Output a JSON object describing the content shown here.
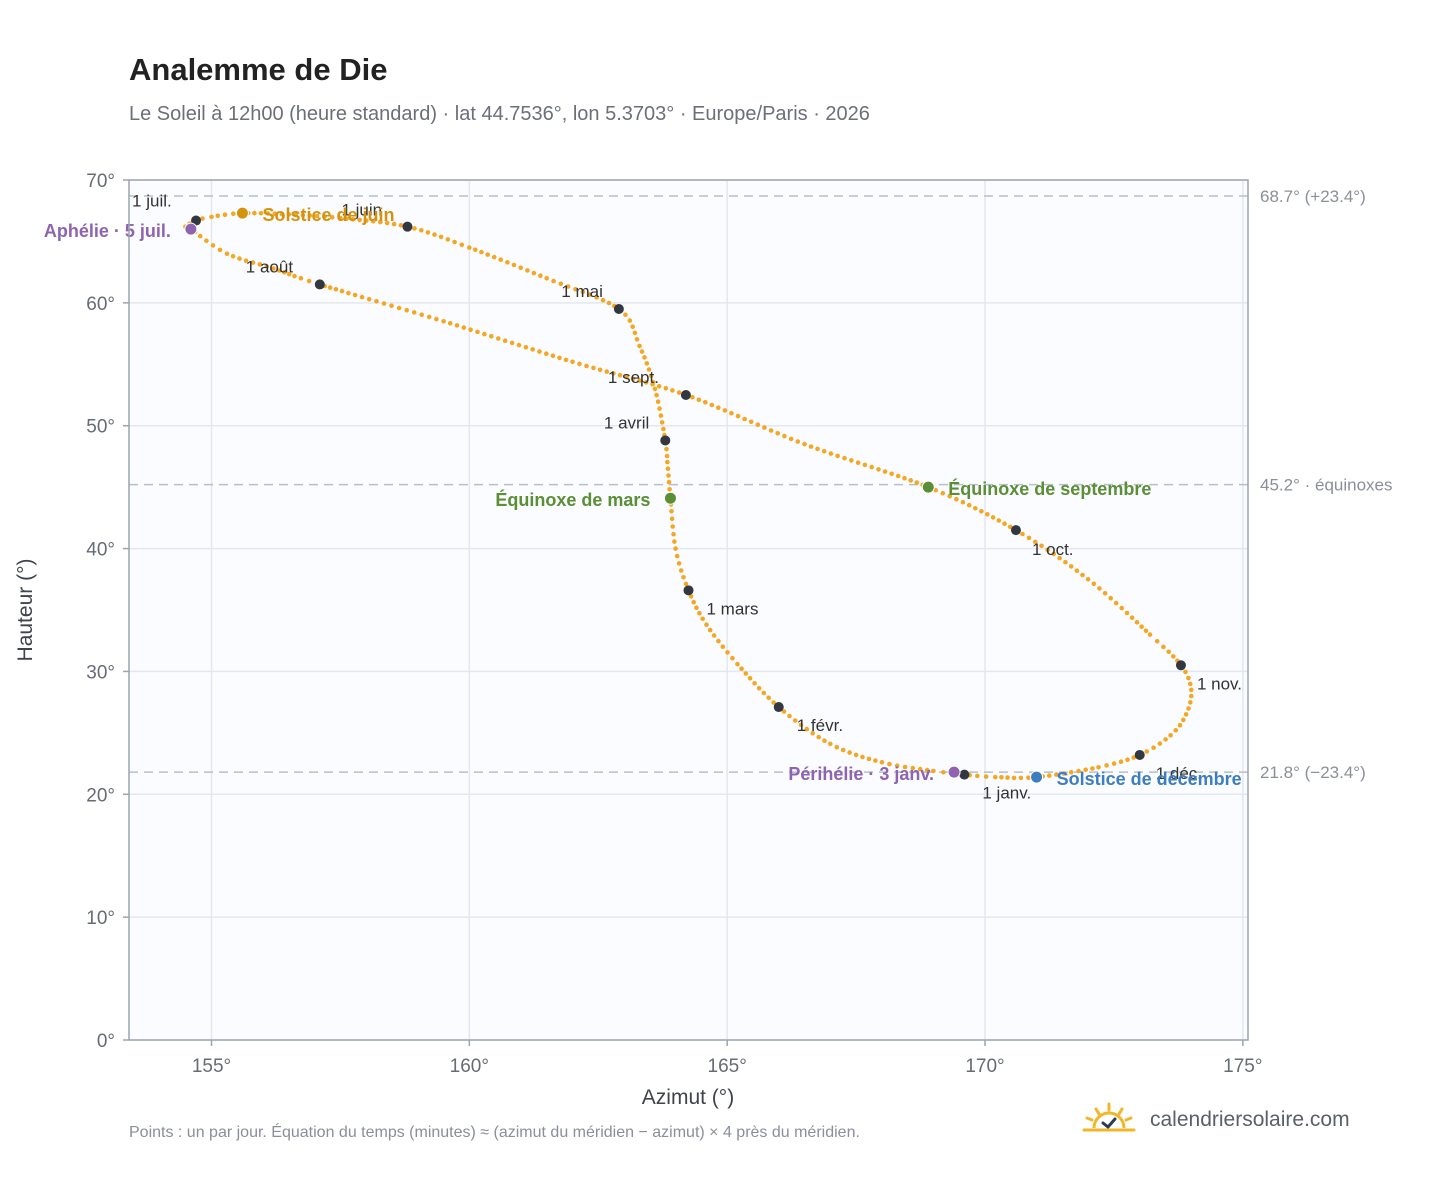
{
  "header": {
    "title": "Analemme de Die",
    "subtitle": "Le Soleil à 12h00 (heure standard) · lat 44.7536°, lon 5.3703° · Europe/Paris · 2026"
  },
  "chart_data": {
    "type": "scatter",
    "xlabel": "Azimut (°)",
    "ylabel": "Hauteur (°)",
    "xlim": [
      153.4,
      175.1
    ],
    "ylim": [
      0,
      70
    ],
    "x_ticks": [
      155,
      160,
      165,
      170,
      175
    ],
    "y_ticks": [
      0,
      10,
      20,
      30,
      40,
      50,
      60,
      70
    ],
    "x_tick_labels": [
      "155°",
      "160°",
      "165°",
      "170°",
      "175°"
    ],
    "y_tick_labels": [
      "0°",
      "10°",
      "20°",
      "30°",
      "40°",
      "50°",
      "60°",
      "70°"
    ],
    "grid": true,
    "curve_color": "#f5a623",
    "marker_color": "#333840",
    "reference_lines": [
      {
        "y": 68.7,
        "label": "68.7° (+23.4°)"
      },
      {
        "y": 45.2,
        "label": "45.2° · équinoxes"
      },
      {
        "y": 21.8,
        "label": "21.8° (−23.4°)"
      }
    ],
    "month_markers": [
      {
        "label": "1 janv.",
        "x": 169.6,
        "y": 21.6
      },
      {
        "label": "1 févr.",
        "x": 166.0,
        "y": 27.1
      },
      {
        "label": "1 mars",
        "x": 164.25,
        "y": 36.6
      },
      {
        "label": "1 avril",
        "x": 163.8,
        "y": 48.8
      },
      {
        "label": "1 mai",
        "x": 162.9,
        "y": 59.5
      },
      {
        "label": "1 juin",
        "x": 158.8,
        "y": 66.2
      },
      {
        "label": "1 juil.",
        "x": 154.7,
        "y": 66.7
      },
      {
        "label": "1 août",
        "x": 157.1,
        "y": 61.5
      },
      {
        "label": "1 sept.",
        "x": 164.2,
        "y": 52.5
      },
      {
        "label": "1 oct.",
        "x": 170.6,
        "y": 41.5
      },
      {
        "label": "1 nov.",
        "x": 173.8,
        "y": 30.5
      },
      {
        "label": "1 déc.",
        "x": 173.0,
        "y": 23.2
      }
    ],
    "events": [
      {
        "label": "Solstice de juin",
        "x": 155.6,
        "y": 67.3,
        "color": "#d4920f"
      },
      {
        "label": "Aphélie · 5 juil.",
        "x": 154.6,
        "y": 66.0,
        "color": "#8e63b0"
      },
      {
        "label": "Équinoxe de mars",
        "x": 163.9,
        "y": 44.1,
        "color": "#5a8f35"
      },
      {
        "label": "Équinoxe de septembre",
        "x": 168.9,
        "y": 45.0,
        "color": "#5a8f35"
      },
      {
        "label": "Périhélie · 3 janv.",
        "x": 169.4,
        "y": 21.8,
        "color": "#8e63b0"
      },
      {
        "label": "Solstice de décembre",
        "x": 171.0,
        "y": 21.4,
        "color": "#3d7ec0"
      }
    ],
    "curve": [
      [
        169.6,
        21.6
      ],
      [
        169.0,
        21.9
      ],
      [
        168.0,
        22.6
      ],
      [
        167.0,
        24.1
      ],
      [
        166.0,
        27.1
      ],
      [
        165.2,
        30.6
      ],
      [
        164.6,
        33.8
      ],
      [
        164.25,
        36.6
      ],
      [
        164.0,
        40.0
      ],
      [
        163.9,
        44.1
      ],
      [
        163.85,
        46.5
      ],
      [
        163.8,
        48.8
      ],
      [
        163.6,
        53.0
      ],
      [
        163.3,
        56.5
      ],
      [
        162.9,
        59.5
      ],
      [
        161.5,
        62.0
      ],
      [
        160.0,
        64.5
      ],
      [
        158.8,
        66.2
      ],
      [
        157.5,
        66.9
      ],
      [
        156.5,
        67.2
      ],
      [
        155.6,
        67.3
      ],
      [
        155.0,
        67.0
      ],
      [
        154.7,
        66.7
      ],
      [
        154.5,
        66.2
      ],
      [
        154.6,
        66.0
      ],
      [
        155.3,
        64.0
      ],
      [
        156.2,
        62.8
      ],
      [
        157.1,
        61.5
      ],
      [
        159.5,
        58.5
      ],
      [
        162.0,
        55.2
      ],
      [
        164.2,
        52.5
      ],
      [
        166.5,
        48.5
      ],
      [
        168.9,
        45.0
      ],
      [
        170.6,
        41.5
      ],
      [
        172.0,
        37.5
      ],
      [
        173.2,
        33.0
      ],
      [
        173.8,
        30.5
      ],
      [
        174.0,
        28.5
      ],
      [
        173.9,
        26.5
      ],
      [
        173.6,
        24.8
      ],
      [
        173.0,
        23.2
      ],
      [
        172.2,
        22.2
      ],
      [
        171.0,
        21.4
      ],
      [
        170.2,
        21.4
      ],
      [
        169.6,
        21.6
      ]
    ]
  },
  "footer": {
    "note": "Points : un par jour. Équation du temps (minutes) ≈ (azimut du méridien − azimut) × 4 près du méridien.",
    "brand": "calendriersolaire.com"
  }
}
